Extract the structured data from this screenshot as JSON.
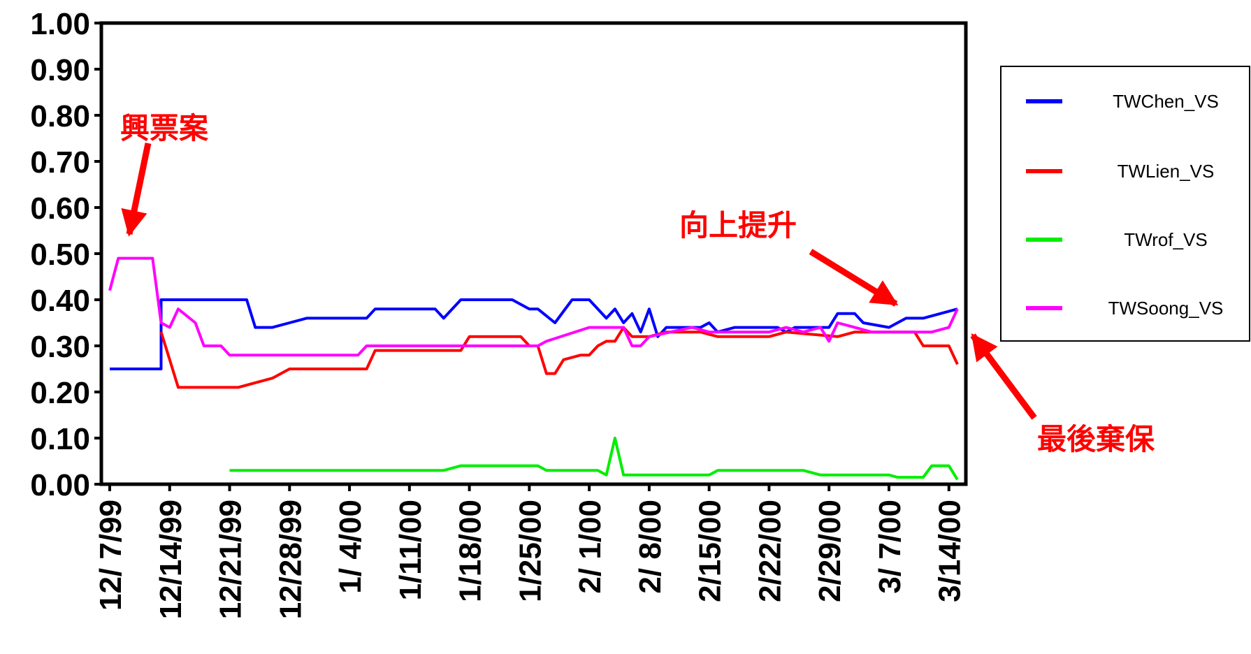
{
  "chart_data": {
    "type": "line",
    "title": "",
    "xlabel": "",
    "ylabel": "",
    "ylim": [
      0,
      1
    ],
    "xlim": [
      "1999-12-07",
      "2000-03-15"
    ],
    "grid": false,
    "legend_position": "right",
    "y_ticks": [
      "0.00",
      "0.10",
      "0.20",
      "0.30",
      "0.40",
      "0.50",
      "0.60",
      "0.70",
      "0.80",
      "0.90",
      "1.00"
    ],
    "x_ticks": [
      {
        "date": "1999-12-07",
        "label": "12/ 7/99"
      },
      {
        "date": "1999-12-14",
        "label": "12/14/99"
      },
      {
        "date": "1999-12-21",
        "label": "12/21/99"
      },
      {
        "date": "1999-12-28",
        "label": "12/28/99"
      },
      {
        "date": "2000-01-04",
        "label": "1/ 4/00"
      },
      {
        "date": "2000-01-11",
        "label": "1/11/00"
      },
      {
        "date": "2000-01-18",
        "label": "1/18/00"
      },
      {
        "date": "2000-01-25",
        "label": "1/25/00"
      },
      {
        "date": "2000-02-01",
        "label": "2/ 1/00"
      },
      {
        "date": "2000-02-08",
        "label": "2/ 8/00"
      },
      {
        "date": "2000-02-15",
        "label": "2/15/00"
      },
      {
        "date": "2000-02-22",
        "label": "2/22/00"
      },
      {
        "date": "2000-02-29",
        "label": "2/29/00"
      },
      {
        "date": "2000-03-07",
        "label": "3/ 7/00"
      },
      {
        "date": "2000-03-14",
        "label": "3/14/00"
      }
    ],
    "series": [
      {
        "name": "TWChen_VS",
        "color": "#0000ff",
        "points": [
          [
            "1999-12-07",
            0.25
          ],
          [
            "1999-12-13",
            0.25
          ],
          [
            "1999-12-13",
            0.4
          ],
          [
            "1999-12-23",
            0.4
          ],
          [
            "1999-12-24",
            0.34
          ],
          [
            "1999-12-26",
            0.34
          ],
          [
            "1999-12-28",
            0.35
          ],
          [
            "1999-12-30",
            0.36
          ],
          [
            "2000-01-06",
            0.36
          ],
          [
            "2000-01-07",
            0.38
          ],
          [
            "2000-01-14",
            0.38
          ],
          [
            "2000-01-15",
            0.36
          ],
          [
            "2000-01-17",
            0.4
          ],
          [
            "2000-01-23",
            0.4
          ],
          [
            "2000-01-25",
            0.38
          ],
          [
            "2000-01-26",
            0.38
          ],
          [
            "2000-01-28",
            0.35
          ],
          [
            "2000-01-30",
            0.4
          ],
          [
            "2000-02-01",
            0.4
          ],
          [
            "2000-02-03",
            0.36
          ],
          [
            "2000-02-04",
            0.38
          ],
          [
            "2000-02-05",
            0.35
          ],
          [
            "2000-02-06",
            0.37
          ],
          [
            "2000-02-07",
            0.33
          ],
          [
            "2000-02-08",
            0.38
          ],
          [
            "2000-02-09",
            0.32
          ],
          [
            "2000-02-10",
            0.34
          ],
          [
            "2000-02-14",
            0.34
          ],
          [
            "2000-02-15",
            0.35
          ],
          [
            "2000-02-16",
            0.33
          ],
          [
            "2000-02-18",
            0.34
          ],
          [
            "2000-02-23",
            0.34
          ],
          [
            "2000-02-24",
            0.33
          ],
          [
            "2000-02-25",
            0.34
          ],
          [
            "2000-02-29",
            0.34
          ],
          [
            "2000-03-01",
            0.37
          ],
          [
            "2000-03-03",
            0.37
          ],
          [
            "2000-03-04",
            0.35
          ],
          [
            "2000-03-07",
            0.34
          ],
          [
            "2000-03-09",
            0.36
          ],
          [
            "2000-03-11",
            0.36
          ],
          [
            "2000-03-13",
            0.37
          ],
          [
            "2000-03-15",
            0.38
          ]
        ]
      },
      {
        "name": "TWLien_VS",
        "color": "#ff0000",
        "points": [
          [
            "1999-12-13",
            0.33
          ],
          [
            "1999-12-14",
            0.27
          ],
          [
            "1999-12-15",
            0.21
          ],
          [
            "1999-12-22",
            0.21
          ],
          [
            "1999-12-24",
            0.22
          ],
          [
            "1999-12-26",
            0.23
          ],
          [
            "1999-12-28",
            0.25
          ],
          [
            "2000-01-05",
            0.25
          ],
          [
            "2000-01-06",
            0.25
          ],
          [
            "2000-01-07",
            0.29
          ],
          [
            "2000-01-17",
            0.29
          ],
          [
            "2000-01-18",
            0.32
          ],
          [
            "2000-01-24",
            0.32
          ],
          [
            "2000-01-25",
            0.3
          ],
          [
            "2000-01-26",
            0.3
          ],
          [
            "2000-01-27",
            0.24
          ],
          [
            "2000-01-28",
            0.24
          ],
          [
            "2000-01-29",
            0.27
          ],
          [
            "2000-01-31",
            0.28
          ],
          [
            "2000-02-01",
            0.28
          ],
          [
            "2000-02-02",
            0.3
          ],
          [
            "2000-02-03",
            0.31
          ],
          [
            "2000-02-04",
            0.31
          ],
          [
            "2000-02-05",
            0.34
          ],
          [
            "2000-02-06",
            0.32
          ],
          [
            "2000-02-08",
            0.32
          ],
          [
            "2000-02-10",
            0.33
          ],
          [
            "2000-02-14",
            0.33
          ],
          [
            "2000-02-16",
            0.32
          ],
          [
            "2000-02-22",
            0.32
          ],
          [
            "2000-02-24",
            0.33
          ],
          [
            "2000-03-01",
            0.32
          ],
          [
            "2000-03-03",
            0.33
          ],
          [
            "2000-03-10",
            0.33
          ],
          [
            "2000-03-11",
            0.3
          ],
          [
            "2000-03-14",
            0.3
          ],
          [
            "2000-03-15",
            0.26
          ]
        ]
      },
      {
        "name": "TWrof_VS",
        "color": "#00ee00",
        "points": [
          [
            "1999-12-21",
            0.03
          ],
          [
            "2000-01-15",
            0.03
          ],
          [
            "2000-01-17",
            0.04
          ],
          [
            "2000-01-26",
            0.04
          ],
          [
            "2000-01-27",
            0.03
          ],
          [
            "2000-02-02",
            0.03
          ],
          [
            "2000-02-03",
            0.02
          ],
          [
            "2000-02-04",
            0.1
          ],
          [
            "2000-02-05",
            0.02
          ],
          [
            "2000-02-15",
            0.02
          ],
          [
            "2000-02-16",
            0.03
          ],
          [
            "2000-02-26",
            0.03
          ],
          [
            "2000-02-28",
            0.02
          ],
          [
            "2000-03-06",
            0.02
          ],
          [
            "2000-03-07",
            0.02
          ],
          [
            "2000-03-08",
            0.015
          ],
          [
            "2000-03-11",
            0.015
          ],
          [
            "2000-03-12",
            0.04
          ],
          [
            "2000-03-14",
            0.04
          ],
          [
            "2000-03-15",
            0.01
          ]
        ]
      },
      {
        "name": "TWSoong_VS",
        "color": "#ff00ff",
        "points": [
          [
            "1999-12-07",
            0.42
          ],
          [
            "1999-12-08",
            0.49
          ],
          [
            "1999-12-12",
            0.49
          ],
          [
            "1999-12-13",
            0.35
          ],
          [
            "1999-12-14",
            0.34
          ],
          [
            "1999-12-15",
            0.38
          ],
          [
            "1999-12-17",
            0.35
          ],
          [
            "1999-12-18",
            0.3
          ],
          [
            "1999-12-20",
            0.3
          ],
          [
            "1999-12-21",
            0.28
          ],
          [
            "2000-01-05",
            0.28
          ],
          [
            "2000-01-06",
            0.3
          ],
          [
            "2000-01-26",
            0.3
          ],
          [
            "2000-01-27",
            0.31
          ],
          [
            "2000-02-01",
            0.34
          ],
          [
            "2000-02-05",
            0.34
          ],
          [
            "2000-02-06",
            0.3
          ],
          [
            "2000-02-07",
            0.3
          ],
          [
            "2000-02-08",
            0.32
          ],
          [
            "2000-02-13",
            0.34
          ],
          [
            "2000-02-15",
            0.33
          ],
          [
            "2000-02-22",
            0.33
          ],
          [
            "2000-02-24",
            0.34
          ],
          [
            "2000-02-26",
            0.33
          ],
          [
            "2000-02-28",
            0.34
          ],
          [
            "2000-02-29",
            0.31
          ],
          [
            "2000-03-01",
            0.35
          ],
          [
            "2000-03-03",
            0.34
          ],
          [
            "2000-03-05",
            0.33
          ],
          [
            "2000-03-12",
            0.33
          ],
          [
            "2000-03-14",
            0.34
          ],
          [
            "2000-03-15",
            0.38
          ]
        ]
      }
    ],
    "annotations": [
      {
        "text": "興票案",
        "color": "#ff0000"
      },
      {
        "text": "向上提升",
        "color": "#ff0000"
      },
      {
        "text": "最後棄保",
        "color": "#ff0000"
      }
    ]
  }
}
